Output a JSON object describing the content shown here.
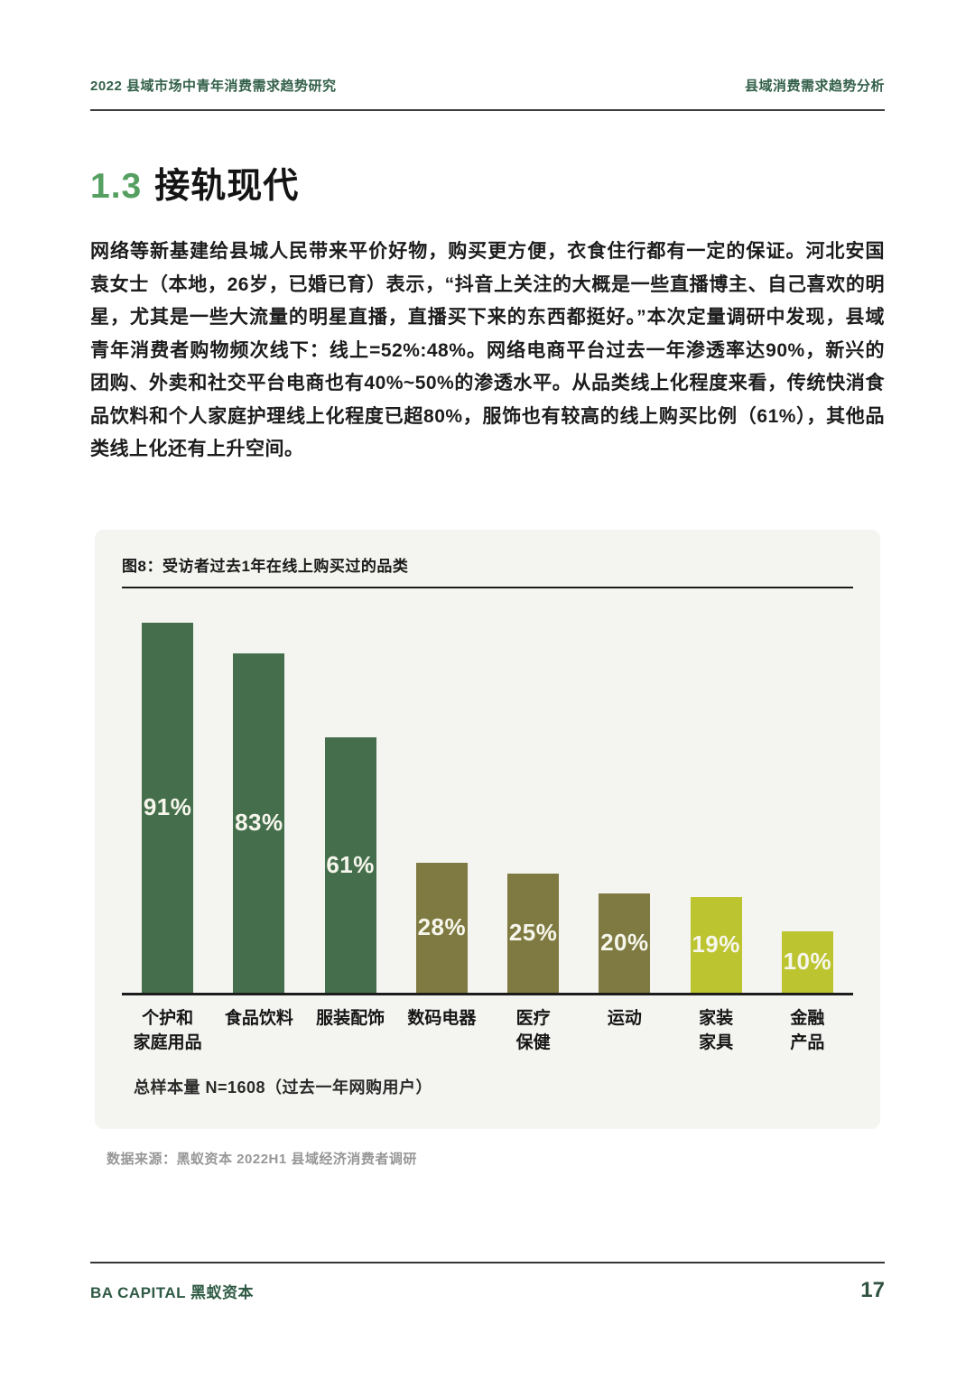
{
  "header": {
    "left": "2022 县域市场中青年消费需求趋势研究",
    "right": "县域消费需求趋势分析"
  },
  "section": {
    "number": "1.3",
    "title": "接轨现代"
  },
  "body_paragraph": "网络等新基建给县城人民带来平价好物，购买更方便，衣食住行都有一定的保证。河北安国袁女士（本地，26岁，已婚已育）表示，“抖音上关注的大概是一些直播博主、自己喜欢的明星，尤其是一些大流量的明星直播，直播买下来的东西都挺好。”本次定量调研中发现，县域青年消费者购物频次线下：线上=52%:48%。网络电商平台过去一年渗透率达90%，新兴的团购、外卖和社交平台电商也有40%~50%的渗透水平。从品类线上化程度来看，传统快消食品饮料和个人家庭护理线上化程度已超80%，服饰也有较高的线上购买比例（61%），其他品类线上化还有上升空间。",
  "chart_data": {
    "type": "bar",
    "title": "图8：受访者过去1年在线上购买过的品类",
    "categories": [
      "个护和家庭用品",
      "食品饮料",
      "服装配饰",
      "数码电器",
      "医疗保健",
      "运动",
      "家装家具",
      "金融产品"
    ],
    "category_display": [
      "个护和\n家庭用品",
      "食品饮料",
      "服装配饰",
      "数码电器",
      "医疗\n保健",
      "运动",
      "家装\n家具",
      "金融\n产品"
    ],
    "values": [
      91,
      83,
      61,
      28,
      25,
      20,
      19,
      10
    ],
    "value_labels": [
      "91%",
      "83%",
      "61%",
      "28%",
      "25%",
      "20%",
      "19%",
      "10%"
    ],
    "bar_colors": [
      "#456f4c",
      "#456f4c",
      "#456f4c",
      "#7f7a41",
      "#7f7a41",
      "#7f7a41",
      "#bcc42f",
      "#bcc42f"
    ],
    "ylim": [
      0,
      100
    ],
    "grid": false,
    "legend": "none",
    "note": "总样本量 N=1608（过去一年网购用户）"
  },
  "source_line": "数据来源：黑蚁资本 2022H1 县域经济消费者调研",
  "footer": {
    "left": "BA CAPITAL 黑蚁资本",
    "page_number": "17"
  },
  "colors": {
    "accent_green_dark": "#33604a",
    "accent_green_medium": "#55a061",
    "bar_dark_green": "#456f4c",
    "bar_olive": "#7f7a41",
    "bar_chartreuse": "#bcc42f",
    "chart_panel_bg": "#f4f4f1",
    "value_label_text": "#f6f6ec",
    "source_text": "#979797"
  }
}
